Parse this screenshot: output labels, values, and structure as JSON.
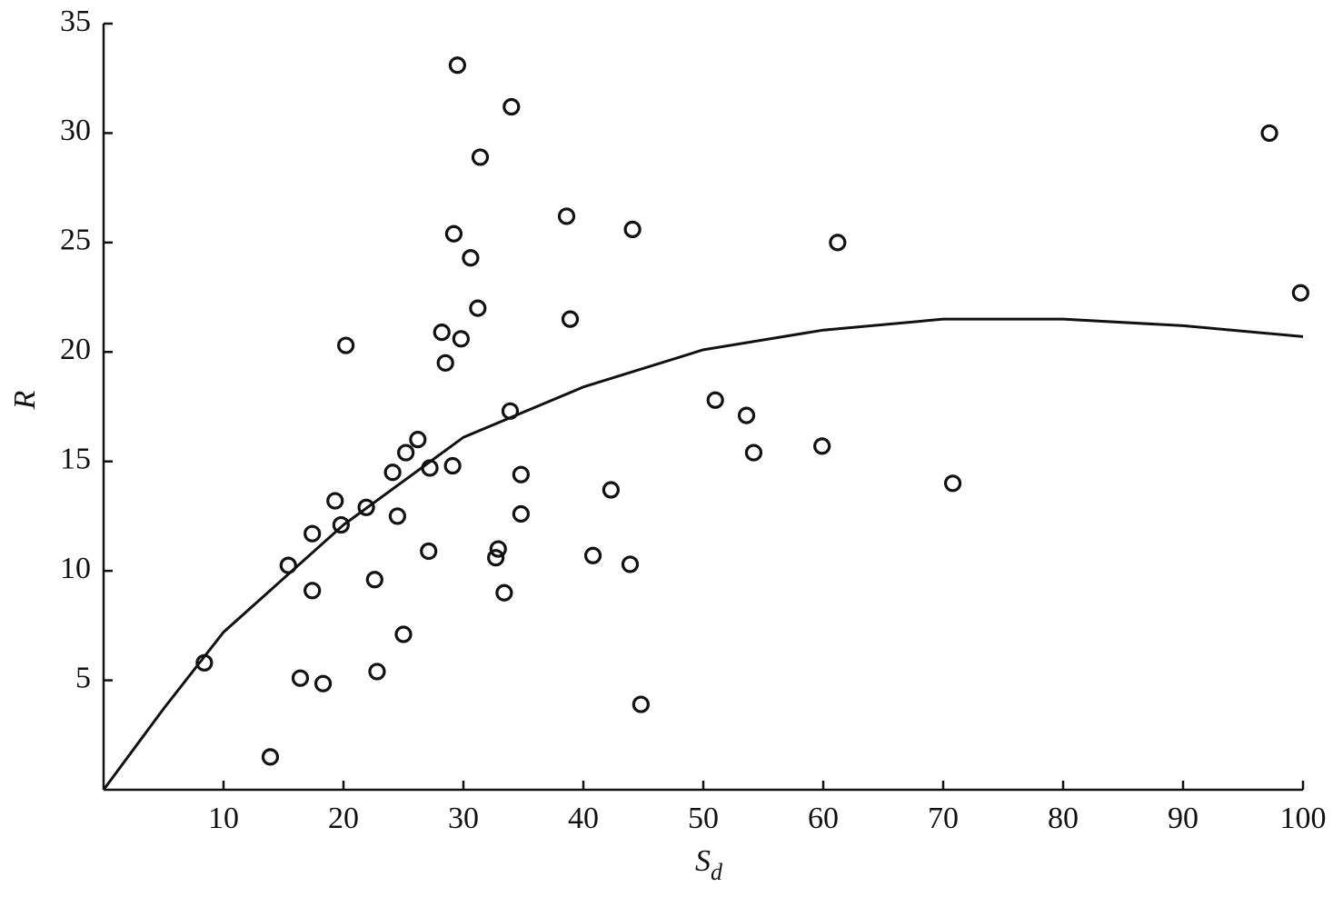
{
  "chart_data": {
    "type": "scatter",
    "x_label": {
      "text": "S",
      "subscript": "d"
    },
    "y_label": "R",
    "xlim": [
      0,
      100
    ],
    "ylim": [
      0,
      35
    ],
    "xticks": [
      10,
      20,
      30,
      40,
      50,
      60,
      70,
      80,
      90,
      100
    ],
    "yticks": [
      5,
      10,
      15,
      20,
      25,
      30,
      35
    ],
    "color": "#111111",
    "points": {
      "x": [
        8.4,
        13.9,
        15.4,
        16.4,
        17.4,
        17.4,
        18.3,
        19.3,
        19.8,
        20.2,
        21.9,
        22.6,
        22.8,
        24.1,
        24.5,
        25.0,
        25.2,
        26.2,
        27.1,
        27.2,
        28.2,
        28.5,
        29.1,
        29.2,
        29.5,
        29.8,
        30.6,
        31.2,
        31.4,
        32.7,
        32.9,
        33.4,
        33.9,
        34.0,
        34.8,
        34.8,
        38.6,
        38.9,
        40.8,
        42.3,
        43.9,
        44.1,
        44.8,
        51.0,
        53.6,
        54.2,
        59.9,
        61.2,
        70.8,
        97.2,
        99.8
      ],
      "y": [
        5.8,
        1.5,
        10.25,
        5.1,
        11.7,
        9.1,
        4.85,
        13.2,
        12.1,
        20.3,
        12.9,
        9.6,
        5.4,
        14.5,
        12.5,
        7.1,
        15.4,
        16.0,
        10.9,
        14.7,
        20.9,
        19.5,
        14.8,
        25.4,
        33.1,
        20.6,
        24.3,
        22.0,
        28.9,
        10.6,
        11.0,
        9.0,
        17.3,
        31.2,
        14.4,
        12.6,
        26.2,
        21.5,
        10.7,
        13.7,
        10.3,
        25.6,
        3.9,
        17.8,
        17.1,
        15.4,
        15.7,
        25.0,
        14.0,
        30.0,
        22.7
      ]
    },
    "fit": {
      "x": [
        0,
        5,
        10,
        20,
        30,
        40,
        50,
        60,
        70,
        80,
        90,
        100
      ],
      "y": [
        0,
        3.7,
        7.2,
        12.1,
        16.1,
        18.4,
        20.1,
        21.0,
        21.5,
        21.5,
        21.2,
        20.7
      ]
    }
  }
}
